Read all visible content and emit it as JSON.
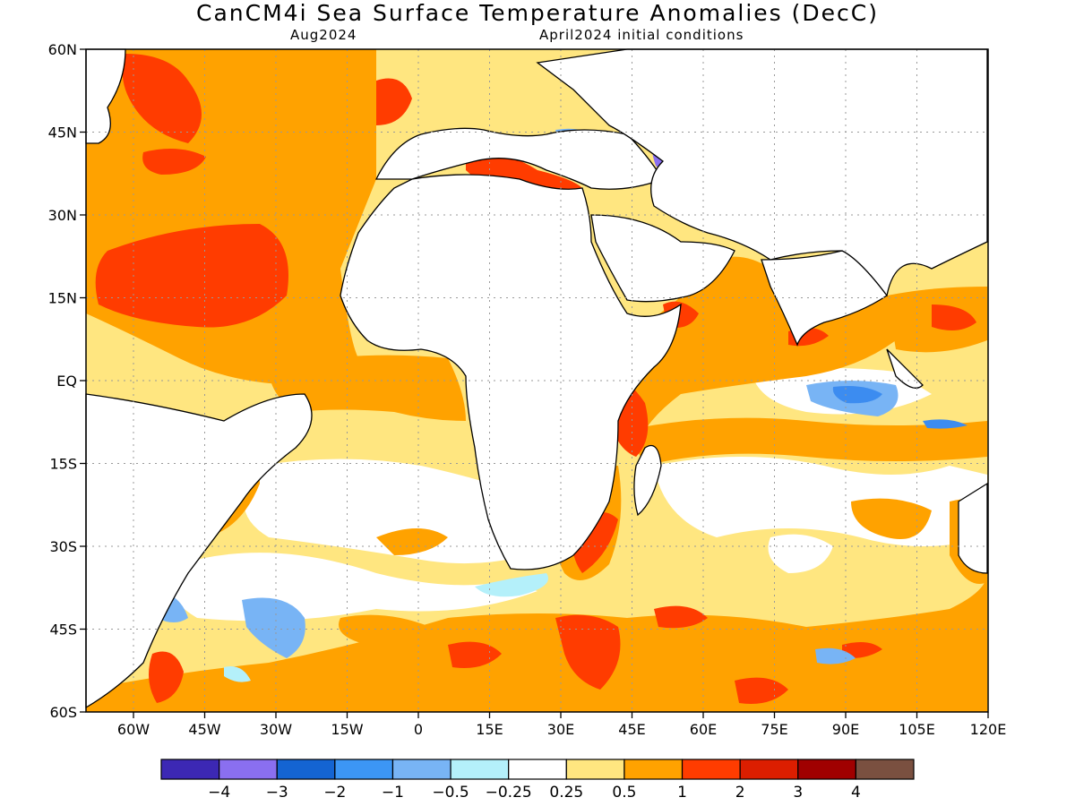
{
  "header": {
    "title": "CanCM4i Sea Surface Temperature Anomalies (DecC)",
    "valid_month": "Aug2024",
    "init_conditions": "April2024 initial conditions"
  },
  "map": {
    "lon_range": [
      -70,
      120
    ],
    "lat_range": [
      -60,
      60
    ],
    "lat_labels": [
      {
        "lat": 60,
        "label": "60N"
      },
      {
        "lat": 45,
        "label": "45N"
      },
      {
        "lat": 30,
        "label": "30N"
      },
      {
        "lat": 15,
        "label": "15N"
      },
      {
        "lat": 0,
        "label": "EQ"
      },
      {
        "lat": -15,
        "label": "15S"
      },
      {
        "lat": -30,
        "label": "30S"
      },
      {
        "lat": -45,
        "label": "45S"
      },
      {
        "lat": -60,
        "label": "60S"
      }
    ],
    "lon_labels": [
      {
        "lon": -60,
        "label": "60W"
      },
      {
        "lon": -45,
        "label": "45W"
      },
      {
        "lon": -30,
        "label": "30W"
      },
      {
        "lon": -15,
        "label": "15W"
      },
      {
        "lon": 0,
        "label": "0"
      },
      {
        "lon": 15,
        "label": "15E"
      },
      {
        "lon": 30,
        "label": "30E"
      },
      {
        "lon": 45,
        "label": "45E"
      },
      {
        "lon": 60,
        "label": "60E"
      },
      {
        "lon": 75,
        "label": "75E"
      },
      {
        "lon": 90,
        "label": "90E"
      },
      {
        "lon": 105,
        "label": "105E"
      },
      {
        "lon": 120,
        "label": "120E"
      }
    ],
    "colors": {
      "ocean_base": "#ffe680",
      "warm_0_5": "#ffa200",
      "warm_1": "#ff3c00",
      "warm_2": "#dc1e00",
      "cool_0_25": "#b4f0fa",
      "cool_0_5": "#78b4f5",
      "cool_1": "#3c8cf0",
      "cool_2": "#8a6ff0",
      "land": "#ffffff",
      "coast": "#000000",
      "grid": "#999999"
    }
  },
  "colorbar": {
    "colors": [
      "#3c28b4",
      "#8a6ff0",
      "#1464d2",
      "#3c96f5",
      "#78b4f5",
      "#b4f0fa",
      "#ffffff",
      "#ffe680",
      "#ffa200",
      "#ff3c00",
      "#dc1e00",
      "#a00000",
      "#7a5040"
    ],
    "labels": [
      "−4",
      "−3",
      "−2",
      "−1",
      "−0.5",
      "−0.25",
      "0.25",
      "0.5",
      "1",
      "2",
      "3",
      "4"
    ]
  }
}
